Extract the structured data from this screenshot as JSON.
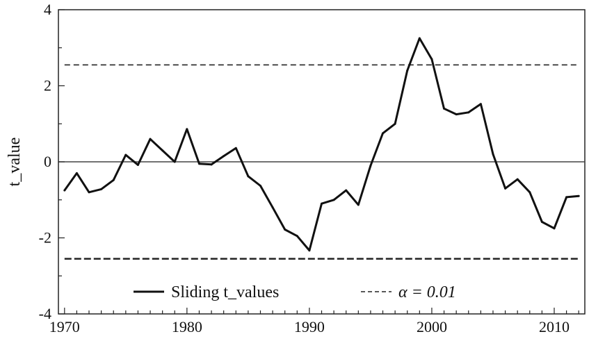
{
  "chart_data": {
    "type": "line",
    "title": "",
    "xlabel": "",
    "ylabel": "t_value",
    "xlim": [
      1969.5,
      2012.5
    ],
    "ylim": [
      -4,
      4
    ],
    "x_ticks": [
      1970,
      1980,
      1990,
      2000,
      2010
    ],
    "y_ticks": [
      4,
      2,
      0,
      -2,
      -4
    ],
    "x_tick_labels": [
      "1970",
      "1980",
      "1990",
      "2000",
      "2010"
    ],
    "y_tick_labels": [
      "4",
      "2",
      "0",
      "-2",
      "-4"
    ],
    "grid": false,
    "legend_position": "bottom-center",
    "series": [
      {
        "name": "Sliding t_values",
        "x": [
          1970,
          1971,
          1972,
          1973,
          1974,
          1975,
          1976,
          1977,
          1978,
          1979,
          1980,
          1981,
          1982,
          1983,
          1984,
          1985,
          1986,
          1987,
          1988,
          1989,
          1990,
          1991,
          1992,
          1993,
          1994,
          1995,
          1996,
          1997,
          1998,
          1999,
          2000,
          2001,
          2002,
          2003,
          2004,
          2005,
          2006,
          2007,
          2008,
          2009,
          2010,
          2011,
          2012
        ],
        "values": [
          -0.75,
          -0.3,
          -0.8,
          -0.72,
          -0.48,
          0.18,
          -0.08,
          0.6,
          0.3,
          0.0,
          0.86,
          -0.05,
          -0.07,
          0.15,
          0.36,
          -0.38,
          -0.63,
          -1.2,
          -1.78,
          -1.95,
          -2.33,
          -1.1,
          -1.0,
          -0.75,
          -1.13,
          -0.1,
          0.75,
          1.0,
          2.4,
          3.25,
          2.7,
          1.4,
          1.25,
          1.3,
          1.52,
          0.2,
          -0.7,
          -0.46,
          -0.8,
          -1.58,
          -1.75,
          -0.93,
          -0.9
        ],
        "color": "#111111",
        "style": "solid"
      },
      {
        "name": "α = 0.01",
        "y": 2.55,
        "color": "#222222",
        "style": "dashed"
      },
      {
        "name": "",
        "y": -2.55,
        "color": "#222222",
        "style": "dashed"
      }
    ],
    "reference_line": {
      "y": 0,
      "color": "#444444"
    },
    "legend": [
      {
        "label": "Sliding t_values",
        "style": "solid"
      },
      {
        "label": "α = 0.01",
        "style": "dashed"
      }
    ]
  }
}
